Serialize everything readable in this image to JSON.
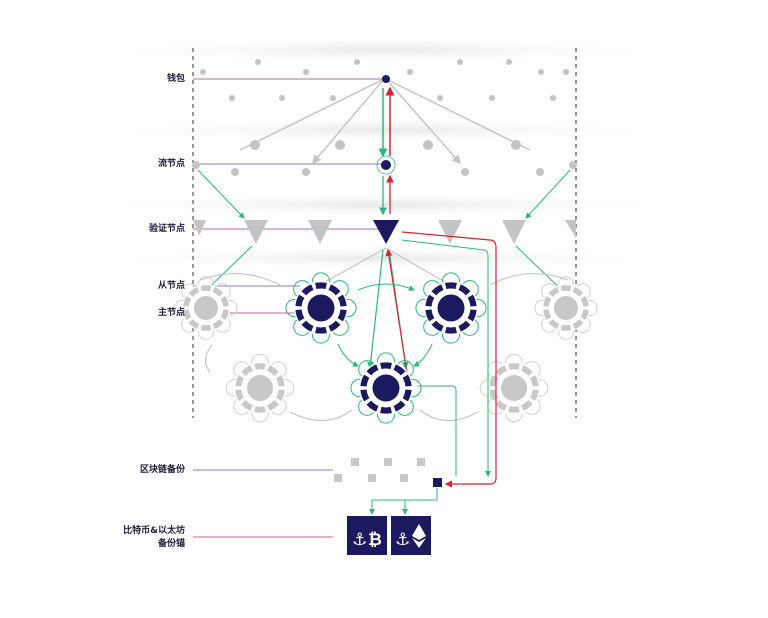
{
  "labels": {
    "wallet": "钱包",
    "stream_node": "流节点",
    "validator_node": "验证节点",
    "slave_node": "从节点",
    "master_node": "主节点",
    "blockchain_backup": "区块链备份",
    "btc_eth_anchor_line1": "比特币&以太坊",
    "btc_eth_anchor_line2": "备份锚"
  },
  "colors": {
    "navy": "#1c1a5e",
    "green": "#2fb57a",
    "red": "#d6252f",
    "purple": "#a8348a",
    "grey": "#c4c4c4",
    "blue_line": "#5a55b8"
  },
  "icons": {
    "btc_anchor": "bitcoin-anchor-icon",
    "eth_anchor": "ethereum-anchor-icon"
  }
}
